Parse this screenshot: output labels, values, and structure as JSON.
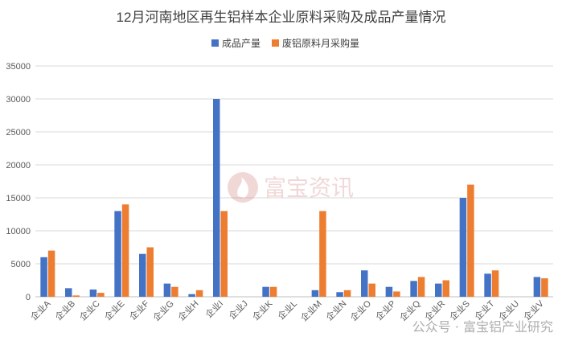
{
  "chart_data": {
    "type": "bar",
    "title": "12月河南地区再生铝样本企业原料采购及成品产量情况",
    "xlabel": "",
    "ylabel": "",
    "ylim": [
      0,
      35000
    ],
    "yticks": [
      0,
      5000,
      10000,
      15000,
      20000,
      25000,
      30000,
      35000
    ],
    "ytick_labels": [
      "0",
      "5000",
      "10000",
      "15000",
      "20000",
      "25000",
      "30000",
      "35000"
    ],
    "grid": true,
    "legend_position": "top",
    "categories": [
      "企业A",
      "企业B",
      "企业C",
      "企业E",
      "企业F",
      "企业G",
      "企业H",
      "企业I",
      "企业J",
      "企业K",
      "企业L",
      "企业M",
      "企业N",
      "企业O",
      "企业P",
      "企业Q",
      "企业R",
      "企业S",
      "企业T",
      "企业U",
      "企业V"
    ],
    "series": [
      {
        "name": "成品产量",
        "color": "#4472C4",
        "values": [
          6000,
          1300,
          1100,
          13000,
          6500,
          2000,
          400,
          30000,
          0,
          1500,
          0,
          1000,
          700,
          4000,
          1500,
          2400,
          2000,
          15000,
          3500,
          0,
          3000
        ]
      },
      {
        "name": "废铝原料月采购量",
        "color": "#ED7D31",
        "values": [
          7000,
          200,
          600,
          14000,
          7500,
          1500,
          1000,
          13000,
          0,
          1500,
          0,
          13000,
          1000,
          2000,
          800,
          3000,
          2500,
          17000,
          4000,
          0,
          2800
        ]
      }
    ]
  },
  "watermark": {
    "logo_text": "富宝资讯",
    "footer_text": "公众号 · 富宝铝产业研究"
  }
}
